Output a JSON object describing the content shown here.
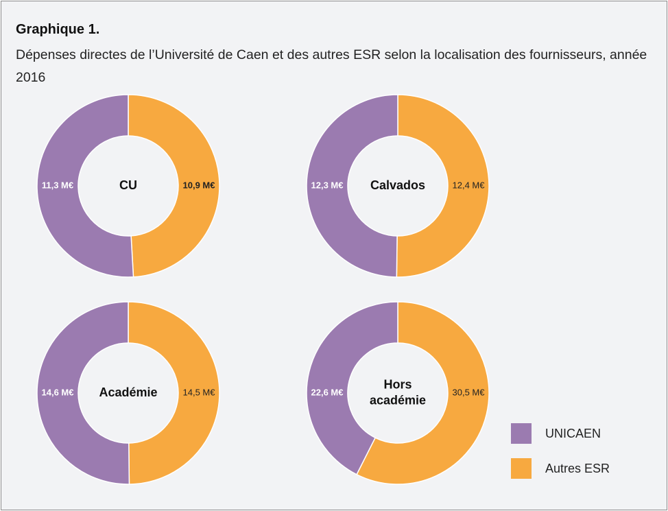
{
  "chart_data": {
    "type": "donut",
    "title": "Graphique 1.",
    "subtitle": "Dépenses directes de l’Université de Caen et des autres ESR selon la localisation des fournisseurs, année 2016",
    "categories": [
      "CU",
      "Calvados",
      "Académie",
      "Hors académie"
    ],
    "series": [
      {
        "name": "UNICAEN",
        "color": "#9b7bb0",
        "values": [
          11.3,
          12.3,
          14.6,
          22.6
        ],
        "value_labels": [
          "11,3 M€",
          "12,3 M€",
          "14,6 M€",
          "22,6 M€"
        ]
      },
      {
        "name": "Autres ESR",
        "color": "#f7a940",
        "values": [
          10.9,
          12.4,
          14.5,
          30.5
        ],
        "value_labels": [
          "10,9 M€",
          "12,4 M€",
          "14,5 M€",
          "30,5 M€"
        ]
      }
    ]
  }
}
